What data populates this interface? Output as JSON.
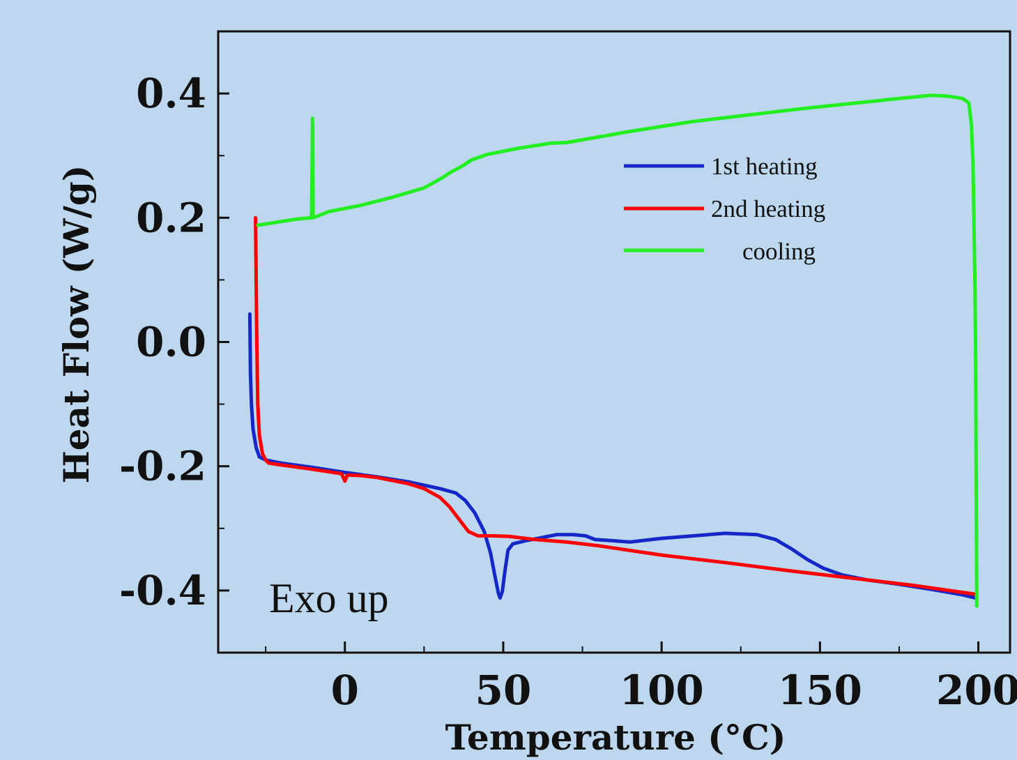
{
  "chart_data": {
    "type": "line",
    "title": "",
    "xlabel": "Temperature (°C)",
    "ylabel": "Heat Flow (W/g)",
    "xlim": [
      -40,
      210
    ],
    "ylim": [
      -0.5,
      0.5
    ],
    "xticks": [
      0,
      50,
      100,
      150,
      200
    ],
    "xtick_labels": [
      "0",
      "50",
      "100",
      "150",
      "200"
    ],
    "yticks": [
      0.4,
      0.2,
      0.0,
      -0.2,
      -0.4
    ],
    "ytick_labels": [
      "0.4",
      "0.2",
      "0.0",
      "-0.2",
      "-0.4"
    ],
    "grid": false,
    "legend_position": "top-right",
    "annotation": "Exo up",
    "series": [
      {
        "name": "1st heating",
        "color": "#1428c8",
        "points": [
          [
            -30,
            0.045
          ],
          [
            -29.8,
            -0.05
          ],
          [
            -29.5,
            -0.1
          ],
          [
            -29,
            -0.14
          ],
          [
            -28,
            -0.17
          ],
          [
            -27,
            -0.185
          ],
          [
            -25,
            -0.19
          ],
          [
            -20,
            -0.195
          ],
          [
            -10,
            -0.202
          ],
          [
            0,
            -0.21
          ],
          [
            10,
            -0.217
          ],
          [
            20,
            -0.225
          ],
          [
            30,
            -0.236
          ],
          [
            35,
            -0.243
          ],
          [
            38,
            -0.255
          ],
          [
            41,
            -0.275
          ],
          [
            44,
            -0.305
          ],
          [
            46,
            -0.34
          ],
          [
            47.5,
            -0.38
          ],
          [
            48.5,
            -0.405
          ],
          [
            49,
            -0.412
          ],
          [
            49.7,
            -0.402
          ],
          [
            50.5,
            -0.37
          ],
          [
            51.5,
            -0.335
          ],
          [
            53,
            -0.325
          ],
          [
            57,
            -0.32
          ],
          [
            62,
            -0.315
          ],
          [
            67,
            -0.31
          ],
          [
            72,
            -0.31
          ],
          [
            76,
            -0.312
          ],
          [
            79,
            -0.318
          ],
          [
            85,
            -0.32
          ],
          [
            90,
            -0.322
          ],
          [
            100,
            -0.316
          ],
          [
            110,
            -0.312
          ],
          [
            120,
            -0.308
          ],
          [
            130,
            -0.31
          ],
          [
            136,
            -0.318
          ],
          [
            141,
            -0.333
          ],
          [
            146,
            -0.35
          ],
          [
            151,
            -0.364
          ],
          [
            157,
            -0.375
          ],
          [
            165,
            -0.383
          ],
          [
            175,
            -0.39
          ],
          [
            185,
            -0.398
          ],
          [
            195,
            -0.407
          ],
          [
            199,
            -0.412
          ]
        ]
      },
      {
        "name": "2nd heating",
        "color": "#ff0000",
        "points": [
          [
            -28.2,
            0.2
          ],
          [
            -28,
            0.1
          ],
          [
            -27.8,
            0.0
          ],
          [
            -27.5,
            -0.1
          ],
          [
            -27,
            -0.15
          ],
          [
            -26,
            -0.18
          ],
          [
            -25,
            -0.19
          ],
          [
            -24,
            -0.195
          ],
          [
            -20,
            -0.198
          ],
          [
            -10,
            -0.205
          ],
          [
            -1,
            -0.212
          ],
          [
            0,
            -0.224
          ],
          [
            0.8,
            -0.214
          ],
          [
            5,
            -0.215
          ],
          [
            10,
            -0.218
          ],
          [
            20,
            -0.228
          ],
          [
            25,
            -0.236
          ],
          [
            30,
            -0.25
          ],
          [
            33,
            -0.265
          ],
          [
            36,
            -0.285
          ],
          [
            39,
            -0.305
          ],
          [
            42,
            -0.312
          ],
          [
            47,
            -0.312
          ],
          [
            52,
            -0.313
          ],
          [
            60,
            -0.318
          ],
          [
            70,
            -0.322
          ],
          [
            80,
            -0.328
          ],
          [
            100,
            -0.343
          ],
          [
            120,
            -0.355
          ],
          [
            140,
            -0.368
          ],
          [
            160,
            -0.38
          ],
          [
            180,
            -0.392
          ],
          [
            199,
            -0.406
          ]
        ]
      },
      {
        "name": "cooling",
        "color": "#22ee22",
        "points": [
          [
            199.5,
            -0.425
          ],
          [
            199.3,
            -0.2
          ],
          [
            199.1,
            0.0
          ],
          [
            198.9,
            0.1
          ],
          [
            198.6,
            0.2
          ],
          [
            198.3,
            0.29
          ],
          [
            197.8,
            0.35
          ],
          [
            197,
            0.385
          ],
          [
            195,
            0.392
          ],
          [
            190,
            0.396
          ],
          [
            185,
            0.397
          ],
          [
            175,
            0.392
          ],
          [
            160,
            0.384
          ],
          [
            145,
            0.376
          ],
          [
            130,
            0.367
          ],
          [
            110,
            0.355
          ],
          [
            90,
            0.339
          ],
          [
            70,
            0.321
          ],
          [
            65,
            0.32
          ],
          [
            55,
            0.312
          ],
          [
            45,
            0.302
          ],
          [
            40,
            0.293
          ],
          [
            37,
            0.283
          ],
          [
            33,
            0.272
          ],
          [
            31,
            0.265
          ],
          [
            25,
            0.248
          ],
          [
            15,
            0.233
          ],
          [
            5,
            0.22
          ],
          [
            -5,
            0.21
          ],
          [
            -10,
            0.2
          ],
          [
            -10.2,
            0.36
          ],
          [
            -10.5,
            0.2
          ],
          [
            -15,
            0.198
          ],
          [
            -20,
            0.194
          ],
          [
            -25,
            0.19
          ],
          [
            -27.5,
            0.188
          ]
        ]
      }
    ]
  }
}
